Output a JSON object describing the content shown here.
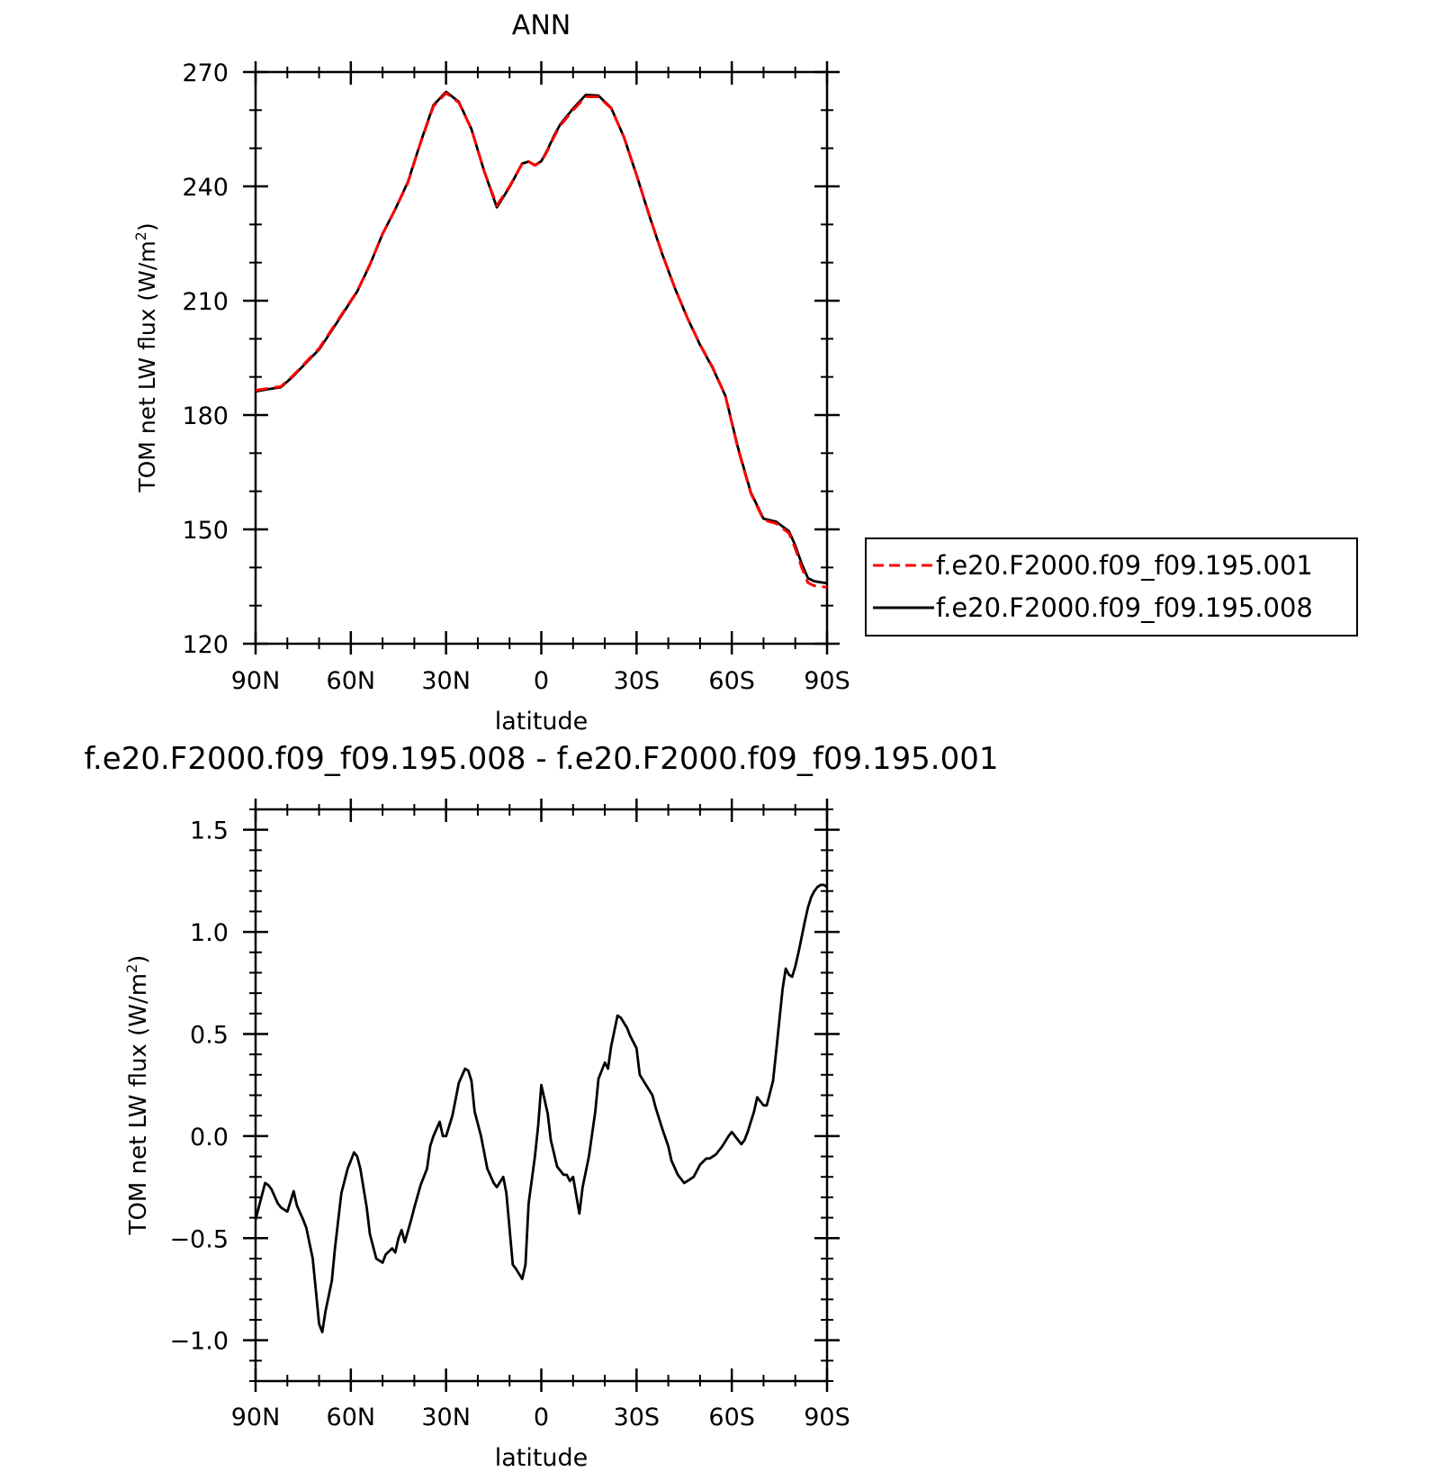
{
  "chart_data": [
    {
      "type": "line",
      "title": "ANN",
      "xlabel": "latitude",
      "ylabel_main": "TOM net LW flux (W/m",
      "ylabel_sup": "2",
      "ylabel_tail": ")",
      "xlim": [
        90,
        -90
      ],
      "ylim": [
        120,
        270
      ],
      "xticks": [
        {
          "value": 90,
          "label": "90N"
        },
        {
          "value": 60,
          "label": "60N"
        },
        {
          "value": 30,
          "label": "30N"
        },
        {
          "value": 0,
          "label": "0"
        },
        {
          "value": -30,
          "label": "30S"
        },
        {
          "value": -60,
          "label": "60S"
        },
        {
          "value": -90,
          "label": "90S"
        }
      ],
      "yticks": [
        {
          "value": 270,
          "label": "270"
        },
        {
          "value": 240,
          "label": "240"
        },
        {
          "value": 210,
          "label": "210"
        },
        {
          "value": 180,
          "label": "180"
        },
        {
          "value": 150,
          "label": "150"
        },
        {
          "value": 120,
          "label": "120"
        }
      ],
      "legend_position": "right",
      "series": [
        {
          "name": "f.e20.F2000.f09_f09.195.001",
          "color": "#ff0000",
          "dash": "dashed",
          "x": [
            90,
            86,
            82,
            78,
            74,
            70,
            66,
            62,
            58,
            54,
            50,
            46,
            42,
            38,
            34,
            30,
            26,
            22,
            18,
            14,
            10,
            6,
            4,
            2,
            0,
            -2,
            -4,
            -6,
            -10,
            -14,
            -18,
            -22,
            -26,
            -30,
            -34,
            -38,
            -42,
            -46,
            -50,
            -54,
            -58,
            -62,
            -66,
            -70,
            -74,
            -78,
            -80,
            -82,
            -84,
            -86,
            -88,
            -90
          ],
          "y": [
            186.5,
            187,
            187.5,
            190.5,
            194,
            197.5,
            202.5,
            207.5,
            212.5,
            219.5,
            227.5,
            234,
            241,
            251.5,
            261,
            264.5,
            262,
            255,
            244,
            235,
            240,
            246,
            246.5,
            245.5,
            246.5,
            249.5,
            253,
            256,
            260,
            263.5,
            263.5,
            260.5,
            253,
            243,
            232.5,
            222.5,
            213.5,
            205.5,
            198.5,
            192.5,
            185,
            171,
            159.5,
            152.5,
            151.5,
            149,
            145,
            140,
            136,
            135.2,
            135,
            134.8
          ]
        },
        {
          "name": "f.e20.F2000.f09_f09.195.008",
          "color": "#000000",
          "dash": "solid",
          "x": [
            90,
            86,
            82,
            78,
            74,
            70,
            66,
            62,
            58,
            54,
            50,
            46,
            42,
            38,
            34,
            30,
            26,
            22,
            18,
            14,
            10,
            6,
            4,
            2,
            0,
            -2,
            -4,
            -6,
            -10,
            -14,
            -18,
            -22,
            -26,
            -30,
            -34,
            -38,
            -42,
            -46,
            -50,
            -54,
            -58,
            -62,
            -66,
            -70,
            -74,
            -78,
            -80,
            -82,
            -84,
            -86,
            -88,
            -90
          ],
          "y": [
            186.2,
            186.8,
            187.3,
            190.3,
            193.8,
            197.2,
            202.2,
            207.3,
            212.4,
            219.4,
            227.5,
            234,
            241.2,
            251.6,
            261.3,
            264.8,
            262.2,
            255,
            244,
            234.5,
            239.8,
            246,
            246.5,
            245.6,
            246.6,
            249.7,
            253.3,
            256.3,
            260.4,
            264,
            263.8,
            260.6,
            253,
            243,
            232.4,
            222.4,
            213.4,
            205.5,
            198.4,
            192.3,
            185,
            171.3,
            159.7,
            152.8,
            152,
            149.5,
            145.8,
            141,
            137.2,
            136.4,
            136.1,
            135.9
          ]
        }
      ]
    },
    {
      "type": "line",
      "title": "f.e20.F2000.f09_f09.195.008 - f.e20.F2000.f09_f09.195.001",
      "xlabel": "latitude",
      "ylabel_main": "TOM net LW flux (W/m",
      "ylabel_sup": "2",
      "ylabel_tail": ")",
      "xlim": [
        90,
        -90
      ],
      "ylim": [
        -1.2,
        1.6
      ],
      "xticks": [
        {
          "value": 90,
          "label": "90N"
        },
        {
          "value": 60,
          "label": "60N"
        },
        {
          "value": 30,
          "label": "30N"
        },
        {
          "value": 0,
          "label": "0"
        },
        {
          "value": -30,
          "label": "30S"
        },
        {
          "value": -60,
          "label": "60S"
        },
        {
          "value": -90,
          "label": "90S"
        }
      ],
      "yticks": [
        {
          "value": 1.5,
          "label": "1.5"
        },
        {
          "value": 1.0,
          "label": "1.0"
        },
        {
          "value": 0.5,
          "label": "0.5"
        },
        {
          "value": 0.0,
          "label": "0.0"
        },
        {
          "value": -0.5,
          "label": "−0.5"
        },
        {
          "value": -1.0,
          "label": "−1.0"
        }
      ],
      "series": [
        {
          "color": "#000000",
          "dash": "solid",
          "x": [
            90,
            89,
            87,
            86,
            85,
            83,
            82,
            80,
            78,
            77,
            75,
            74,
            72,
            70,
            69,
            68,
            66,
            65,
            63,
            61,
            59,
            58,
            57,
            55,
            54,
            52,
            50,
            49,
            47,
            46,
            45,
            44,
            43,
            41,
            40,
            38,
            36,
            35,
            34,
            32,
            31,
            30,
            28,
            27,
            26,
            24,
            23,
            22,
            21,
            19,
            17,
            15,
            14,
            12,
            11,
            9,
            8,
            6,
            5,
            4,
            2,
            1,
            0,
            -2,
            -3,
            -5,
            -6,
            -7,
            -8,
            -9,
            -10,
            -12,
            -13,
            -15,
            -17,
            -18,
            -20,
            -21,
            -22,
            -24,
            -25,
            -27,
            -28,
            -30,
            -31,
            -33,
            -35,
            -36,
            -38,
            -40,
            -41,
            -43,
            -45,
            -46,
            -48,
            -49,
            -50,
            -52,
            -53,
            -55,
            -57,
            -59,
            -60,
            -61,
            -63,
            -64,
            -65,
            -67,
            -68,
            -70,
            -71,
            -73,
            -74,
            -76,
            -77,
            -78,
            -79,
            -80,
            -81,
            -83,
            -84,
            -85,
            -86,
            -87,
            -88,
            -89,
            -90
          ],
          "y": [
            -0.41,
            -0.35,
            -0.23,
            -0.24,
            -0.26,
            -0.33,
            -0.35,
            -0.37,
            -0.27,
            -0.34,
            -0.41,
            -0.45,
            -0.6,
            -0.92,
            -0.96,
            -0.86,
            -0.71,
            -0.55,
            -0.28,
            -0.16,
            -0.08,
            -0.1,
            -0.16,
            -0.35,
            -0.48,
            -0.6,
            -0.62,
            -0.58,
            -0.55,
            -0.57,
            -0.5,
            -0.46,
            -0.52,
            -0.41,
            -0.35,
            -0.24,
            -0.16,
            -0.05,
            0.0,
            0.07,
            0.0,
            0.0,
            0.1,
            0.18,
            0.26,
            0.33,
            0.32,
            0.27,
            0.12,
            0.0,
            -0.16,
            -0.23,
            -0.25,
            -0.2,
            -0.28,
            -0.63,
            -0.65,
            -0.7,
            -0.63,
            -0.33,
            -0.1,
            0.05,
            0.25,
            0.11,
            -0.02,
            -0.15,
            -0.17,
            -0.19,
            -0.19,
            -0.22,
            -0.2,
            -0.38,
            -0.25,
            -0.1,
            0.12,
            0.28,
            0.36,
            0.33,
            0.44,
            0.59,
            0.58,
            0.53,
            0.49,
            0.43,
            0.3,
            0.25,
            0.2,
            0.14,
            0.04,
            -0.05,
            -0.12,
            -0.19,
            -0.23,
            -0.22,
            -0.2,
            -0.17,
            -0.14,
            -0.11,
            -0.11,
            -0.09,
            -0.05,
            0.0,
            0.02,
            0.0,
            -0.04,
            -0.02,
            0.02,
            0.12,
            0.19,
            0.15,
            0.15,
            0.27,
            0.42,
            0.72,
            0.82,
            0.79,
            0.78,
            0.83,
            0.9,
            1.05,
            1.12,
            1.17,
            1.2,
            1.22,
            1.23,
            1.23,
            1.22
          ]
        }
      ]
    }
  ]
}
